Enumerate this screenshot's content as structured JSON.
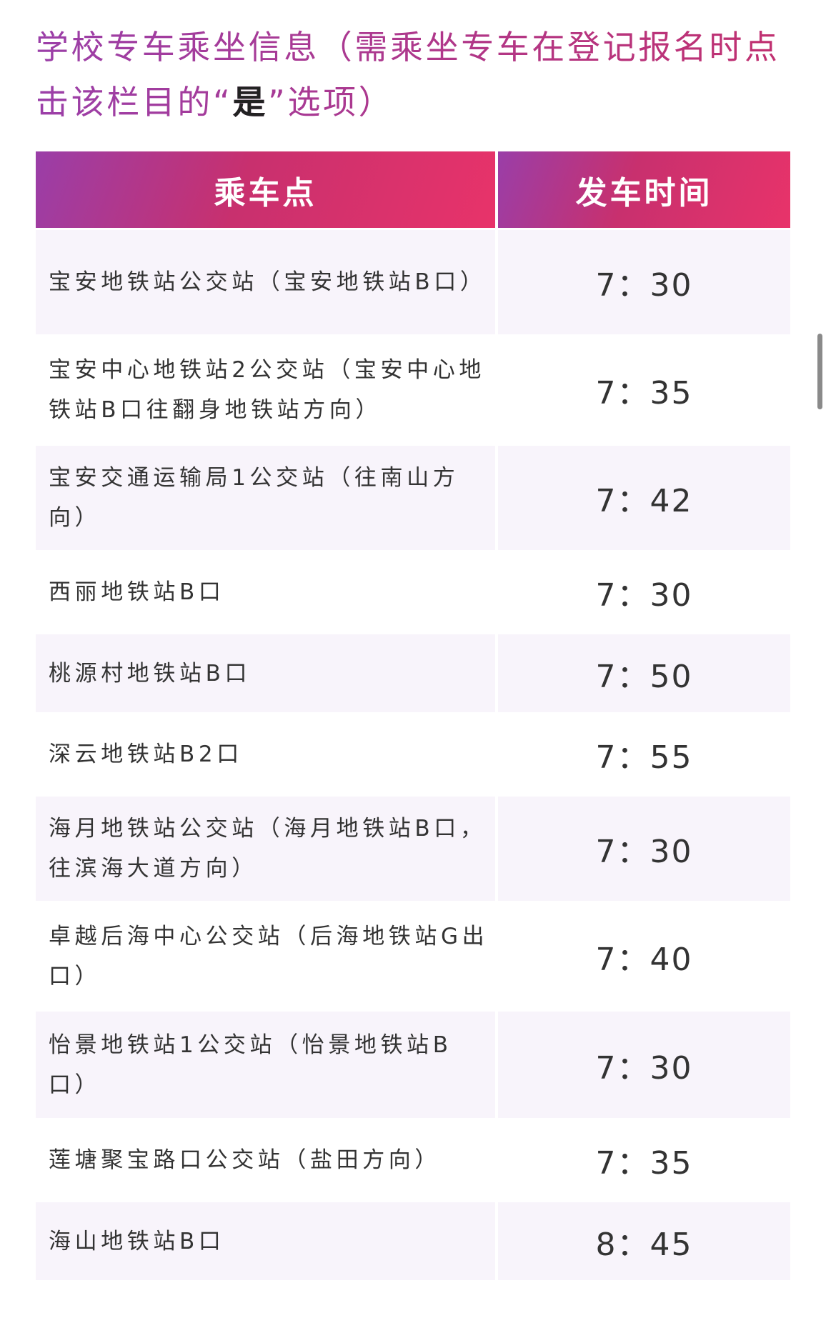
{
  "title": {
    "prefix": "学校专车乘坐信息（需乘坐专车在登记报名时点击该栏目的“",
    "emphasis": "是",
    "suffix": "”选项）"
  },
  "table": {
    "headers": [
      "乘车点",
      "发车时间"
    ],
    "rows": [
      {
        "location": "宝安地铁站公交站（宝安地铁站B口）",
        "time": "7：30"
      },
      {
        "location": "宝安中心地铁站2公交站（宝安中心地铁站B口往翻身地铁站方向）",
        "time": "7：35"
      },
      {
        "location": "宝安交通运输局1公交站（往南山方向）",
        "time": "7：42"
      },
      {
        "location": "西丽地铁站B口",
        "time": "7：30"
      },
      {
        "location": "桃源村地铁站B口",
        "time": "7：50"
      },
      {
        "location": "深云地铁站B2口",
        "time": "7：55"
      },
      {
        "location": "海月地铁站公交站（海月地铁站B口，往滨海大道方向）",
        "time": "7：30"
      },
      {
        "location": "卓越后海中心公交站（后海地铁站G出口）",
        "time": "7：40"
      },
      {
        "location": "怡景地铁站1公交站（怡景地铁站B口）",
        "time": "7：30"
      },
      {
        "location": "莲塘聚宝路口公交站（盐田方向）",
        "time": "7：35"
      },
      {
        "location": "海山地铁站B口",
        "time": "8：45"
      }
    ]
  },
  "colors": {
    "header_start": "#9a3ea8",
    "header_end": "#e8336a",
    "row_shade": "#f8f4fb"
  }
}
